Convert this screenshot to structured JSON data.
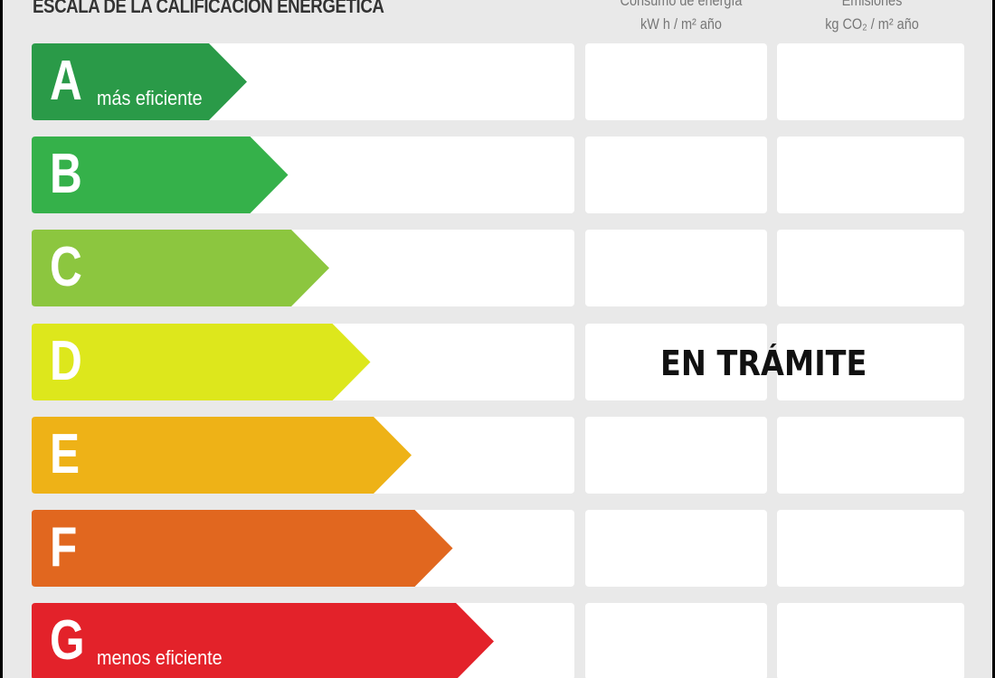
{
  "title": "ESCALA DE LA CALIFICACION ENERGETICA",
  "columns": [
    {
      "title": "Consumo de energía",
      "unit": "kW h / m² año"
    },
    {
      "title": "Emisiones",
      "unit": "kg CO₂ / m² año"
    }
  ],
  "ratings": [
    {
      "letter": "A",
      "label": "más eficiente",
      "color": "#2a9a48"
    },
    {
      "letter": "B",
      "label": "",
      "color": "#35b14a"
    },
    {
      "letter": "C",
      "label": "",
      "color": "#8cc63f"
    },
    {
      "letter": "D",
      "label": "",
      "color": "#dde71c"
    },
    {
      "letter": "E",
      "label": "",
      "color": "#eeb217"
    },
    {
      "letter": "F",
      "label": "",
      "color": "#e1671f"
    },
    {
      "letter": "G",
      "label": "menos eficiente",
      "color": "#e3222a"
    }
  ],
  "status": "EN TRÁMITE"
}
